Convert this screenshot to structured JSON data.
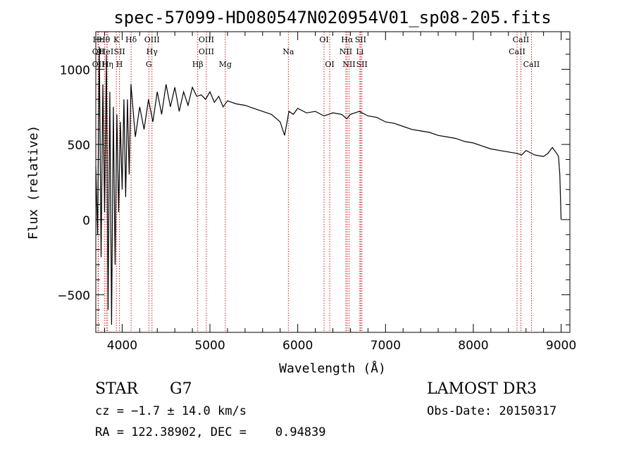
{
  "chart_data": {
    "type": "line",
    "title": "spec-57099-HD080547N020954V01_sp08-205.fits",
    "xlabel": "Wavelength (Å)",
    "ylabel": "Flux (relative)",
    "xlim": [
      3700,
      9100
    ],
    "ylim": [
      -750,
      1250
    ],
    "xticks": [
      4000,
      5000,
      6000,
      7000,
      8000,
      9000
    ],
    "yticks": [
      -500,
      0,
      500,
      1000
    ],
    "grid": false,
    "series": [
      {
        "name": "flux",
        "x": [
          3700,
          3720,
          3740,
          3760,
          3780,
          3800,
          3820,
          3840,
          3860,
          3880,
          3900,
          3920,
          3940,
          3960,
          3980,
          4000,
          4020,
          4040,
          4060,
          4080,
          4100,
          4150,
          4200,
          4250,
          4300,
          4350,
          4400,
          4450,
          4500,
          4550,
          4600,
          4650,
          4700,
          4750,
          4800,
          4850,
          4900,
          4950,
          5000,
          5050,
          5100,
          5150,
          5200,
          5300,
          5400,
          5500,
          5600,
          5700,
          5800,
          5850,
          5900,
          5950,
          6000,
          6100,
          6200,
          6300,
          6350,
          6400,
          6500,
          6560,
          6600,
          6700,
          6800,
          6900,
          7000,
          7100,
          7200,
          7300,
          7400,
          7500,
          7600,
          7700,
          7800,
          7900,
          8000,
          8100,
          8200,
          8300,
          8400,
          8500,
          8550,
          8600,
          8700,
          8800,
          8850,
          8900,
          8950,
          8970,
          8985,
          9000
        ],
        "y": [
          350,
          -100,
          1150,
          -250,
          900,
          50,
          1100,
          -600,
          850,
          -700,
          750,
          -300,
          700,
          50,
          650,
          200,
          800,
          150,
          800,
          300,
          900,
          550,
          750,
          600,
          800,
          650,
          850,
          700,
          900,
          750,
          880,
          720,
          850,
          760,
          880,
          820,
          830,
          800,
          850,
          780,
          820,
          750,
          790,
          770,
          760,
          740,
          720,
          700,
          650,
          560,
          720,
          700,
          740,
          710,
          720,
          690,
          700,
          710,
          700,
          670,
          700,
          720,
          690,
          680,
          650,
          640,
          620,
          600,
          590,
          580,
          560,
          550,
          540,
          520,
          510,
          490,
          470,
          460,
          450,
          440,
          430,
          460,
          430,
          420,
          440,
          480,
          440,
          420,
          300,
          0
        ]
      }
    ],
    "lines": [
      {
        "label": "Hε",
        "x": 3726,
        "row": 1
      },
      {
        "label": "OII",
        "x": 3729,
        "row": 2
      },
      {
        "label": "OII",
        "x": 3729,
        "row": 3
      },
      {
        "label": "Hθ",
        "x": 3798,
        "row": 1
      },
      {
        "label": "HeI",
        "x": 3820,
        "row": 2
      },
      {
        "label": "Hη",
        "x": 3835,
        "row": 3
      },
      {
        "label": "K",
        "x": 3934,
        "row": 1
      },
      {
        "label": "SII",
        "x": 3970,
        "row": 2
      },
      {
        "label": "H",
        "x": 3969,
        "row": 3
      },
      {
        "label": "Hδ",
        "x": 4102,
        "row": 1
      },
      {
        "label": "OIII",
        "x": 4340,
        "row": 1
      },
      {
        "label": "Hγ",
        "x": 4340,
        "row": 2
      },
      {
        "label": "G",
        "x": 4304,
        "row": 3
      },
      {
        "label": "OIII",
        "x": 4959,
        "row": 1
      },
      {
        "label": "OIII",
        "x": 4959,
        "row": 2
      },
      {
        "label": "Hβ",
        "x": 4861,
        "row": 3
      },
      {
        "label": "Mg",
        "x": 5175,
        "row": 3
      },
      {
        "label": "Na",
        "x": 5893,
        "row": 2
      },
      {
        "label": "OI",
        "x": 6300,
        "row": 1
      },
      {
        "label": "OI",
        "x": 6364,
        "row": 3
      },
      {
        "label": "Hα",
        "x": 6563,
        "row": 1
      },
      {
        "label": "SII",
        "x": 6716,
        "row": 1
      },
      {
        "label": "NII",
        "x": 6548,
        "row": 2
      },
      {
        "label": "Li",
        "x": 6708,
        "row": 2
      },
      {
        "label": "NII",
        "x": 6584,
        "row": 3
      },
      {
        "label": "SII",
        "x": 6731,
        "row": 3
      },
      {
        "label": "CaII",
        "x": 8542,
        "row": 1
      },
      {
        "label": "CaII",
        "x": 8498,
        "row": 2
      },
      {
        "label": "CaII",
        "x": 8662,
        "row": 3
      }
    ]
  },
  "info": {
    "class": "STAR",
    "subclass": "G7",
    "survey": "LAMOST DR3",
    "redshift": "cz = −1.7 ± 14.0 km/s",
    "obs_date": "Obs-Date: 20150317",
    "coords": "RA = 122.38902, DEC =    0.94839"
  }
}
